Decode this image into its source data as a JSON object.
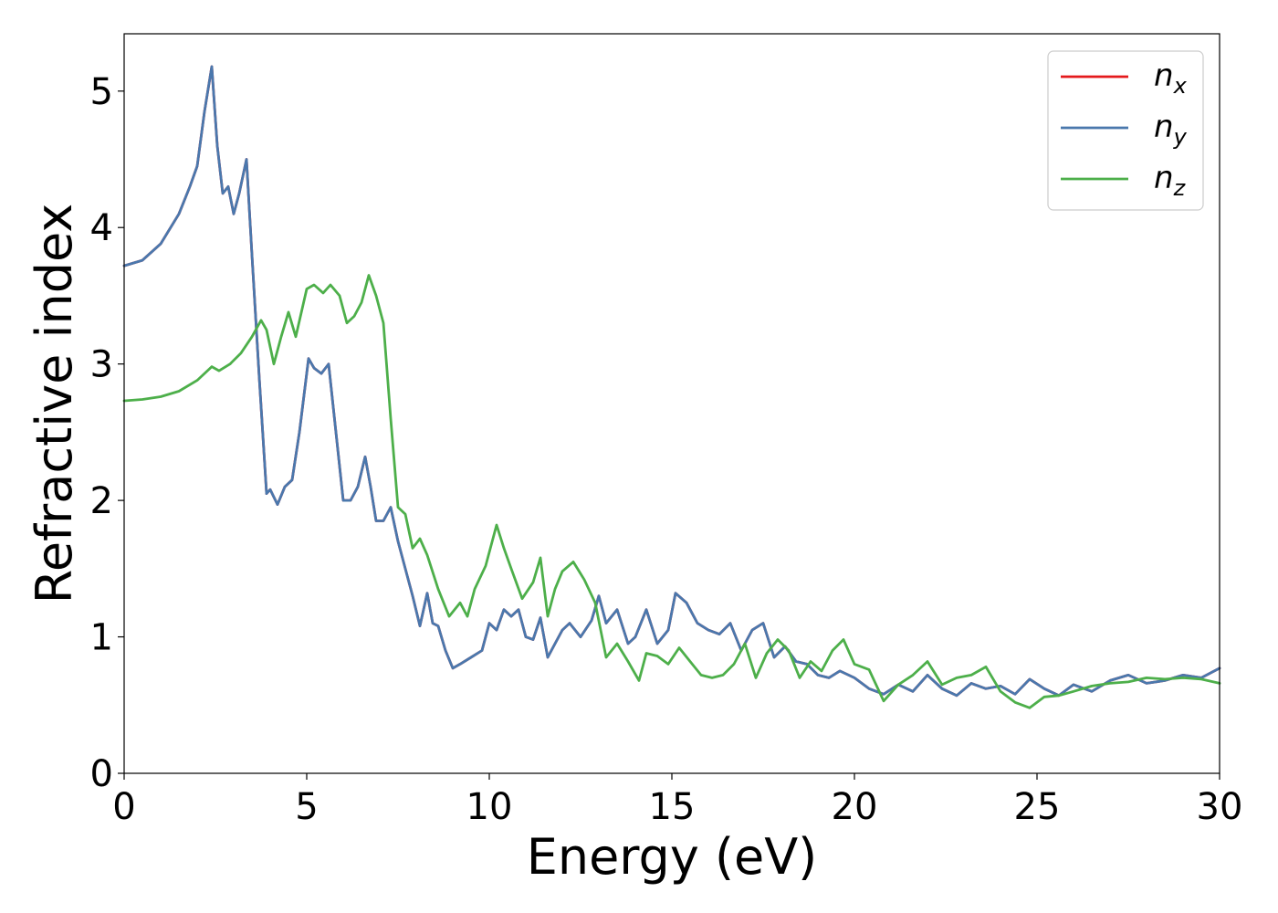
{
  "chart_data": {
    "type": "line",
    "xlabel": "Energy (eV)",
    "ylabel": "Refractive index",
    "xlim": [
      0,
      30
    ],
    "ylim": [
      0,
      5.42
    ],
    "xticks": [
      0,
      5,
      10,
      15,
      20,
      25,
      30
    ],
    "yticks": [
      0,
      1,
      2,
      3,
      4,
      5
    ],
    "xtick_labels": [
      "0",
      "5",
      "10",
      "15",
      "20",
      "25",
      "30"
    ],
    "ytick_labels": [
      "0",
      "1",
      "2",
      "3",
      "4",
      "5"
    ],
    "grid": false,
    "legend_position": "top-right",
    "series": [
      {
        "name": "n_x",
        "label_base": "n",
        "label_sub": "x",
        "color": "#e41a1c",
        "x": [
          0,
          0.5,
          1,
          1.5,
          1.8,
          2.0,
          2.2,
          2.4,
          2.55,
          2.7,
          2.85,
          3.0,
          3.15,
          3.35,
          3.5,
          3.7,
          3.9,
          4.0,
          4.2,
          4.4,
          4.6,
          4.8,
          5.05,
          5.2,
          5.4,
          5.6,
          5.8,
          6.0,
          6.2,
          6.4,
          6.6,
          6.75,
          6.9,
          7.1,
          7.3,
          7.5,
          7.7,
          7.9,
          8.1,
          8.3,
          8.45,
          8.6,
          8.8,
          9.0,
          9.2,
          9.5,
          9.8,
          10.0,
          10.2,
          10.4,
          10.6,
          10.8,
          11.0,
          11.2,
          11.4,
          11.6,
          11.8,
          12.0,
          12.2,
          12.5,
          12.8,
          13.0,
          13.2,
          13.5,
          13.8,
          14.0,
          14.3,
          14.6,
          14.9,
          15.1,
          15.4,
          15.7,
          16.0,
          16.3,
          16.6,
          16.9,
          17.2,
          17.5,
          17.8,
          18.1,
          18.4,
          18.7,
          19.0,
          19.3,
          19.6,
          20.0,
          20.4,
          20.8,
          21.2,
          21.6,
          22.0,
          22.4,
          22.8,
          23.2,
          23.6,
          24.0,
          24.4,
          24.8,
          25.2,
          25.6,
          26.0,
          26.5,
          27.0,
          27.5,
          28.0,
          28.5,
          29.0,
          29.5,
          30.0
        ],
        "y": [
          3.72,
          3.76,
          3.88,
          4.1,
          4.3,
          4.45,
          4.85,
          5.18,
          4.6,
          4.25,
          4.3,
          4.1,
          4.25,
          4.5,
          3.8,
          2.9,
          2.05,
          2.08,
          1.97,
          2.1,
          2.15,
          2.5,
          3.04,
          2.97,
          2.93,
          3.0,
          2.5,
          2.0,
          2.0,
          2.1,
          2.32,
          2.1,
          1.85,
          1.85,
          1.95,
          1.7,
          1.5,
          1.3,
          1.08,
          1.32,
          1.1,
          1.08,
          0.9,
          0.77,
          0.8,
          0.85,
          0.9,
          1.1,
          1.05,
          1.2,
          1.15,
          1.2,
          1.0,
          0.98,
          1.14,
          0.85,
          0.95,
          1.05,
          1.1,
          1.0,
          1.12,
          1.3,
          1.1,
          1.2,
          0.95,
          1.0,
          1.2,
          0.95,
          1.05,
          1.32,
          1.25,
          1.1,
          1.05,
          1.02,
          1.1,
          0.9,
          1.05,
          1.1,
          0.85,
          0.93,
          0.82,
          0.8,
          0.72,
          0.7,
          0.75,
          0.7,
          0.62,
          0.58,
          0.65,
          0.6,
          0.72,
          0.62,
          0.57,
          0.66,
          0.62,
          0.64,
          0.58,
          0.69,
          0.62,
          0.57,
          0.65,
          0.6,
          0.68,
          0.72,
          0.66,
          0.68,
          0.72,
          0.7,
          0.77
        ]
      },
      {
        "name": "n_y",
        "label_base": "n",
        "label_sub": "y",
        "color": "#4a78ad",
        "x": [
          0,
          0.5,
          1,
          1.5,
          1.8,
          2.0,
          2.2,
          2.4,
          2.55,
          2.7,
          2.85,
          3.0,
          3.15,
          3.35,
          3.5,
          3.7,
          3.9,
          4.0,
          4.2,
          4.4,
          4.6,
          4.8,
          5.05,
          5.2,
          5.4,
          5.6,
          5.8,
          6.0,
          6.2,
          6.4,
          6.6,
          6.75,
          6.9,
          7.1,
          7.3,
          7.5,
          7.7,
          7.9,
          8.1,
          8.3,
          8.45,
          8.6,
          8.8,
          9.0,
          9.2,
          9.5,
          9.8,
          10.0,
          10.2,
          10.4,
          10.6,
          10.8,
          11.0,
          11.2,
          11.4,
          11.6,
          11.8,
          12.0,
          12.2,
          12.5,
          12.8,
          13.0,
          13.2,
          13.5,
          13.8,
          14.0,
          14.3,
          14.6,
          14.9,
          15.1,
          15.4,
          15.7,
          16.0,
          16.3,
          16.6,
          16.9,
          17.2,
          17.5,
          17.8,
          18.1,
          18.4,
          18.7,
          19.0,
          19.3,
          19.6,
          20.0,
          20.4,
          20.8,
          21.2,
          21.6,
          22.0,
          22.4,
          22.8,
          23.2,
          23.6,
          24.0,
          24.4,
          24.8,
          25.2,
          25.6,
          26.0,
          26.5,
          27.0,
          27.5,
          28.0,
          28.5,
          29.0,
          29.5,
          30.0
        ],
        "y": [
          3.72,
          3.76,
          3.88,
          4.1,
          4.3,
          4.45,
          4.85,
          5.18,
          4.6,
          4.25,
          4.3,
          4.1,
          4.25,
          4.5,
          3.8,
          2.9,
          2.05,
          2.08,
          1.97,
          2.1,
          2.15,
          2.5,
          3.04,
          2.97,
          2.93,
          3.0,
          2.5,
          2.0,
          2.0,
          2.1,
          2.32,
          2.1,
          1.85,
          1.85,
          1.95,
          1.7,
          1.5,
          1.3,
          1.08,
          1.32,
          1.1,
          1.08,
          0.9,
          0.77,
          0.8,
          0.85,
          0.9,
          1.1,
          1.05,
          1.2,
          1.15,
          1.2,
          1.0,
          0.98,
          1.14,
          0.85,
          0.95,
          1.05,
          1.1,
          1.0,
          1.12,
          1.3,
          1.1,
          1.2,
          0.95,
          1.0,
          1.2,
          0.95,
          1.05,
          1.32,
          1.25,
          1.1,
          1.05,
          1.02,
          1.1,
          0.9,
          1.05,
          1.1,
          0.85,
          0.93,
          0.82,
          0.8,
          0.72,
          0.7,
          0.75,
          0.7,
          0.62,
          0.58,
          0.65,
          0.6,
          0.72,
          0.62,
          0.57,
          0.66,
          0.62,
          0.64,
          0.58,
          0.69,
          0.62,
          0.57,
          0.65,
          0.6,
          0.68,
          0.72,
          0.66,
          0.68,
          0.72,
          0.7,
          0.77
        ]
      },
      {
        "name": "n_z",
        "label_base": "n",
        "label_sub": "z",
        "color": "#4daf4a",
        "x": [
          0,
          0.5,
          1,
          1.5,
          2.0,
          2.4,
          2.6,
          2.9,
          3.2,
          3.5,
          3.75,
          3.9,
          4.1,
          4.3,
          4.5,
          4.7,
          5.0,
          5.2,
          5.45,
          5.65,
          5.9,
          6.1,
          6.3,
          6.5,
          6.7,
          6.9,
          7.1,
          7.3,
          7.5,
          7.7,
          7.9,
          8.1,
          8.3,
          8.6,
          8.9,
          9.2,
          9.4,
          9.6,
          9.9,
          10.2,
          10.4,
          10.6,
          10.9,
          11.2,
          11.4,
          11.6,
          11.8,
          12.0,
          12.3,
          12.6,
          12.9,
          13.2,
          13.5,
          13.8,
          14.1,
          14.3,
          14.6,
          14.9,
          15.2,
          15.5,
          15.8,
          16.1,
          16.4,
          16.7,
          17.0,
          17.3,
          17.6,
          17.9,
          18.2,
          18.5,
          18.8,
          19.1,
          19.4,
          19.7,
          20.0,
          20.4,
          20.8,
          21.2,
          21.6,
          22.0,
          22.4,
          22.8,
          23.2,
          23.6,
          24.0,
          24.4,
          24.8,
          25.2,
          25.6,
          26.0,
          26.5,
          27.0,
          27.5,
          28.0,
          28.5,
          29.0,
          29.5,
          30.0
        ],
        "y": [
          2.73,
          2.74,
          2.76,
          2.8,
          2.88,
          2.98,
          2.95,
          3.0,
          3.08,
          3.2,
          3.32,
          3.25,
          3.0,
          3.2,
          3.38,
          3.2,
          3.55,
          3.58,
          3.52,
          3.58,
          3.5,
          3.3,
          3.35,
          3.45,
          3.65,
          3.5,
          3.3,
          2.6,
          1.95,
          1.9,
          1.65,
          1.72,
          1.6,
          1.35,
          1.15,
          1.25,
          1.15,
          1.35,
          1.52,
          1.82,
          1.65,
          1.5,
          1.28,
          1.4,
          1.58,
          1.15,
          1.35,
          1.48,
          1.55,
          1.42,
          1.25,
          0.85,
          0.95,
          0.82,
          0.68,
          0.88,
          0.86,
          0.8,
          0.92,
          0.82,
          0.72,
          0.7,
          0.72,
          0.8,
          0.95,
          0.7,
          0.88,
          0.98,
          0.9,
          0.7,
          0.82,
          0.75,
          0.9,
          0.98,
          0.8,
          0.76,
          0.53,
          0.65,
          0.72,
          0.82,
          0.65,
          0.7,
          0.72,
          0.78,
          0.6,
          0.52,
          0.48,
          0.56,
          0.57,
          0.6,
          0.64,
          0.66,
          0.67,
          0.7,
          0.69,
          0.7,
          0.69,
          0.66
        ]
      }
    ]
  }
}
